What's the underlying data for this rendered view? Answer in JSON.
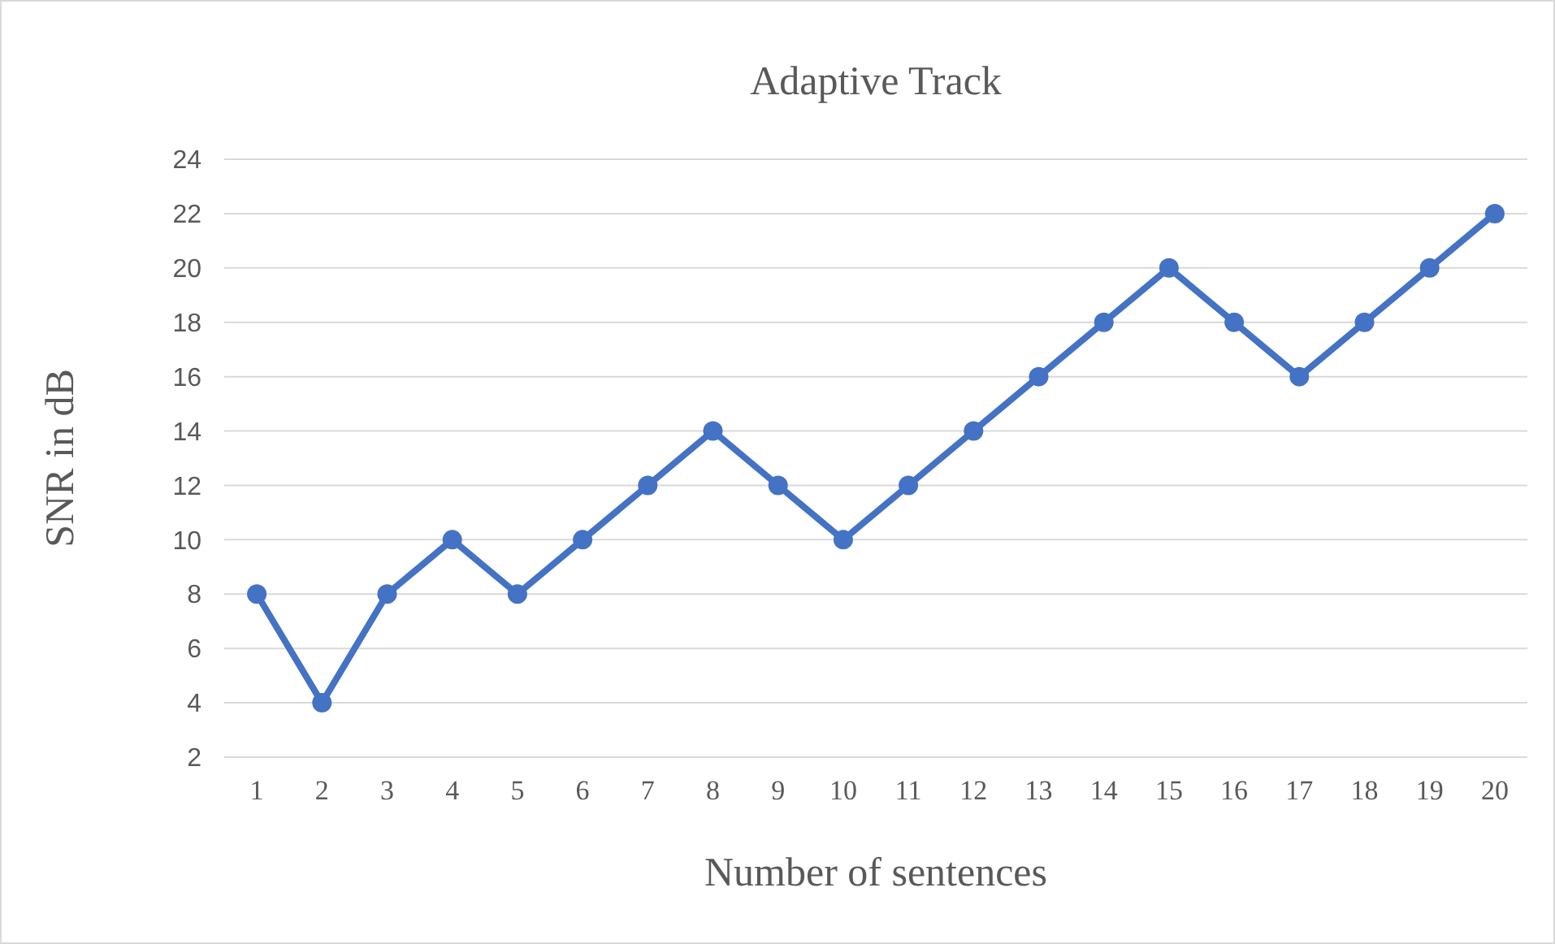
{
  "chart_data": {
    "type": "line",
    "title": "Adaptive Track",
    "xlabel": "Number of sentences",
    "ylabel": "SNR in dB",
    "categories": [
      "1",
      "2",
      "3",
      "4",
      "5",
      "6",
      "7",
      "8",
      "9",
      "10",
      "11",
      "12",
      "13",
      "14",
      "15",
      "16",
      "17",
      "18",
      "19",
      "20"
    ],
    "series": [
      {
        "color": "#4472c4",
        "values": [
          8,
          4,
          8,
          10,
          8,
          10,
          12,
          14,
          12,
          10,
          12,
          14,
          16,
          18,
          20,
          18,
          16,
          18,
          20,
          22
        ]
      }
    ],
    "ylim": [
      2,
      24
    ],
    "yticks": [
      2,
      4,
      6,
      8,
      10,
      12,
      14,
      16,
      18,
      20,
      22,
      24
    ],
    "grid": "y",
    "marker": "circle",
    "line_style": "solid"
  }
}
